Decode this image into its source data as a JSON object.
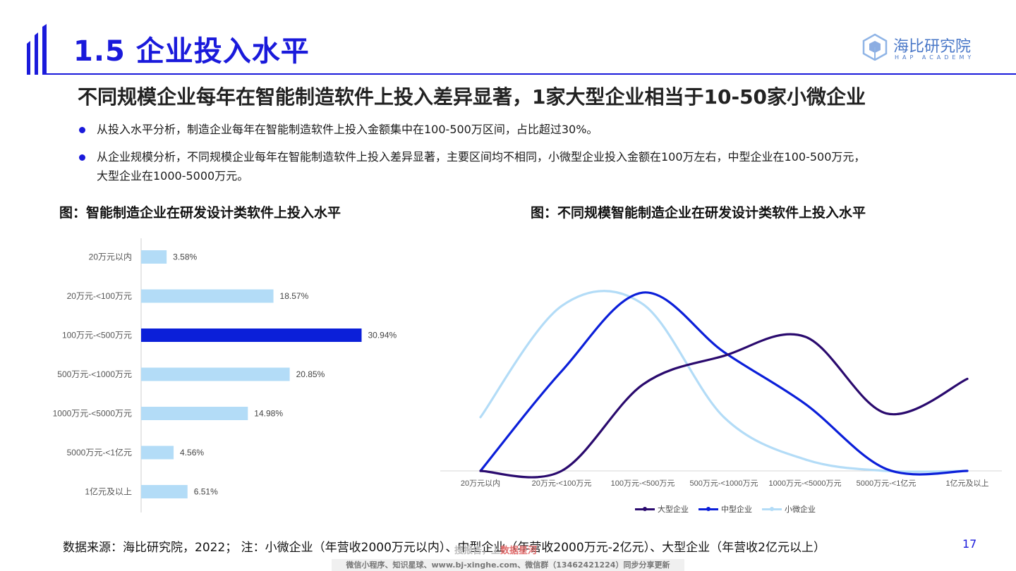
{
  "header": {
    "title": "1.5 企业投入水平",
    "logo_name": "海比研究院",
    "logo_sub": "HAP ACADEMY"
  },
  "headline": "不同规模企业每年在智能制造软件上投入差异显著，1家大型企业相当于10-50家小微企业",
  "bullets": [
    "从投入水平分析，制造企业每年在智能制造软件上投入金额集中在100-500万区间，占比超过30%。",
    "从企业规模分析，不同规模企业每年在智能制造软件上投入差异显著，主要区间均不相同，小微型企业投入金额在100万左右，中型企业在100-500万元，大型企业在1000-5000万元。"
  ],
  "figures": {
    "left_title": "图：智能制造企业在研发设计类软件上投入水平",
    "right_title": "图：不同规模智能制造企业在研发设计类软件上投入水平"
  },
  "chart_data": [
    {
      "type": "bar",
      "orientation": "horizontal",
      "categories": [
        "20万元以内",
        "20万元-<100万元",
        "100万元-<500万元",
        "500万元-<1000万元",
        "1000万元-<5000万元",
        "5000万元-<1亿元",
        "1亿元及以上"
      ],
      "values": [
        3.58,
        18.57,
        30.94,
        20.85,
        14.98,
        4.56,
        6.51
      ],
      "value_labels": [
        "3.58%",
        "18.57%",
        "30.94%",
        "20.85%",
        "14.98%",
        "4.56%",
        "6.51%"
      ],
      "highlight_index": 2,
      "colors": {
        "bar": "#b3dcf7",
        "highlight": "#0b1fd9"
      },
      "xlim": [
        0,
        35
      ],
      "grid": false
    },
    {
      "type": "line",
      "smooth": true,
      "categories": [
        "20万元以内",
        "20万元-<100万元",
        "100万元-<500万元",
        "500万元-<1000万元",
        "1000万元-<5000万元",
        "5000万元-<1亿元",
        "1亿元及以上"
      ],
      "series": [
        {
          "name": "大型企业",
          "color": "#2a0a6e",
          "values": [
            0,
            0,
            45,
            60,
            70,
            30,
            48
          ]
        },
        {
          "name": "中型企业",
          "color": "#0b1fd9",
          "values": [
            0,
            52,
            93,
            62,
            35,
            1,
            0
          ]
        },
        {
          "name": "小微企业",
          "color": "#b3dcf7",
          "values": [
            28,
            86,
            87,
            28,
            6,
            0,
            0
          ]
        }
      ],
      "ylim": [
        0,
        100
      ],
      "legend": "bottom",
      "grid": false
    }
  ],
  "footer": {
    "source": "数据来源：海比研究院，2022；  注：小微企业（年营收2000万元以内）、中型企业（年营收2000万元-2亿元）、大型企业（年营收2亿元以上）",
    "page_number": "17",
    "watermark_a": "搜报告，上",
    "watermark_b": "数据星河",
    "watermark_line": "微信小程序、知识星球、www.bj-xinghe.com、微信群（13462421224）同步分享更新"
  }
}
